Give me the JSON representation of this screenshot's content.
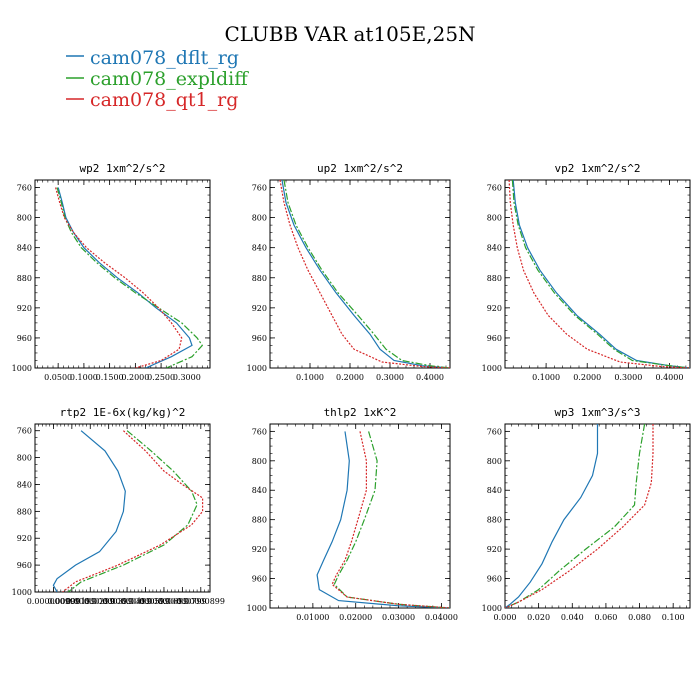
{
  "title": "CLUBB VAR at105E,25N",
  "legend": [
    {
      "label": "cam078_dflt_rg",
      "color": "#1f77b4"
    },
    {
      "label": "cam078_expldiff",
      "color": "#2ca02c"
    },
    {
      "label": "cam078_qt1_rg",
      "color": "#d62728"
    }
  ],
  "chart_data": [
    {
      "type": "line",
      "title": "wp2   1xm^2/s^2",
      "xlim": [
        0.005,
        0.345
      ],
      "ylim": [
        1000,
        750
      ],
      "xticks": [
        0.05,
        0.1,
        0.15,
        0.2,
        0.25,
        0.3
      ],
      "xticklabels": [
        "0.0500",
        "0.1000",
        "0.1500",
        "0.2000",
        "0.2500",
        "0.3000"
      ],
      "yticks": [
        760,
        800,
        840,
        880,
        920,
        960,
        1000
      ],
      "series": [
        {
          "name": "cam078_dflt_rg",
          "points": [
            [
              0.05,
              760
            ],
            [
              0.058,
              780
            ],
            [
              0.065,
              800
            ],
            [
              0.08,
              820
            ],
            [
              0.1,
              840
            ],
            [
              0.13,
              860
            ],
            [
              0.165,
              880
            ],
            [
              0.205,
              900
            ],
            [
              0.24,
              920
            ],
            [
              0.28,
              940
            ],
            [
              0.305,
              960
            ],
            [
              0.31,
              970
            ],
            [
              0.27,
              985
            ],
            [
              0.22,
              1000
            ]
          ]
        },
        {
          "name": "cam078_expldiff",
          "points": [
            [
              0.048,
              760
            ],
            [
              0.056,
              780
            ],
            [
              0.063,
              800
            ],
            [
              0.076,
              820
            ],
            [
              0.095,
              840
            ],
            [
              0.125,
              860
            ],
            [
              0.16,
              880
            ],
            [
              0.2,
              900
            ],
            [
              0.245,
              920
            ],
            [
              0.29,
              940
            ],
            [
              0.32,
              960
            ],
            [
              0.33,
              970
            ],
            [
              0.31,
              985
            ],
            [
              0.26,
              1000
            ]
          ]
        },
        {
          "name": "cam078_qt1_rg",
          "points": [
            [
              0.045,
              760
            ],
            [
              0.053,
              780
            ],
            [
              0.062,
              800
            ],
            [
              0.08,
              820
            ],
            [
              0.105,
              840
            ],
            [
              0.14,
              860
            ],
            [
              0.18,
              880
            ],
            [
              0.215,
              900
            ],
            [
              0.245,
              920
            ],
            [
              0.27,
              940
            ],
            [
              0.29,
              960
            ],
            [
              0.285,
              975
            ],
            [
              0.25,
              990
            ],
            [
              0.2,
              1000
            ]
          ]
        }
      ]
    },
    {
      "type": "line",
      "title": "up2   1xm^2/s^2",
      "xlim": [
        0.0,
        0.45
      ],
      "ylim": [
        1000,
        750
      ],
      "xticks": [
        0.1,
        0.2,
        0.3,
        0.4
      ],
      "xticklabels": [
        "0.1000",
        "0.2000",
        "0.3000",
        "0.4000"
      ],
      "yticks": [
        760,
        800,
        840,
        880,
        920,
        960,
        1000
      ],
      "series": [
        {
          "name": "cam078_dflt_rg",
          "points": [
            [
              0.03,
              750
            ],
            [
              0.04,
              780
            ],
            [
              0.06,
              810
            ],
            [
              0.09,
              840
            ],
            [
              0.125,
              870
            ],
            [
              0.165,
              900
            ],
            [
              0.21,
              930
            ],
            [
              0.25,
              955
            ],
            [
              0.275,
              975
            ],
            [
              0.31,
              990
            ],
            [
              0.38,
              997
            ],
            [
              0.45,
              1000
            ]
          ]
        },
        {
          "name": "cam078_expldiff",
          "points": [
            [
              0.035,
              750
            ],
            [
              0.045,
              780
            ],
            [
              0.065,
              810
            ],
            [
              0.095,
              840
            ],
            [
              0.13,
              870
            ],
            [
              0.17,
              900
            ],
            [
              0.22,
              930
            ],
            [
              0.26,
              955
            ],
            [
              0.29,
              975
            ],
            [
              0.33,
              990
            ],
            [
              0.4,
              997
            ],
            [
              0.45,
              1000
            ]
          ]
        },
        {
          "name": "cam078_qt1_rg",
          "points": [
            [
              0.025,
              750
            ],
            [
              0.035,
              780
            ],
            [
              0.05,
              810
            ],
            [
              0.07,
              840
            ],
            [
              0.095,
              870
            ],
            [
              0.125,
              900
            ],
            [
              0.155,
              930
            ],
            [
              0.18,
              955
            ],
            [
              0.21,
              975
            ],
            [
              0.28,
              992
            ],
            [
              0.38,
              998
            ],
            [
              0.45,
              1000
            ]
          ]
        }
      ]
    },
    {
      "type": "line",
      "title": "vp2   1xm^2/s^2",
      "xlim": [
        0.0,
        0.45
      ],
      "ylim": [
        1000,
        750
      ],
      "xticks": [
        0.1,
        0.2,
        0.3,
        0.4
      ],
      "xticklabels": [
        "0.1000",
        "0.2000",
        "0.3000",
        "0.4000"
      ],
      "yticks": [
        760,
        800,
        840,
        880,
        920,
        960,
        1000
      ],
      "series": [
        {
          "name": "cam078_dflt_rg",
          "points": [
            [
              0.02,
              750
            ],
            [
              0.025,
              780
            ],
            [
              0.035,
              810
            ],
            [
              0.055,
              840
            ],
            [
              0.085,
              870
            ],
            [
              0.125,
              900
            ],
            [
              0.175,
              930
            ],
            [
              0.23,
              955
            ],
            [
              0.27,
              975
            ],
            [
              0.32,
              990
            ],
            [
              0.4,
              997
            ],
            [
              0.45,
              1000
            ]
          ]
        },
        {
          "name": "cam078_expldiff",
          "points": [
            [
              0.018,
              750
            ],
            [
              0.022,
              780
            ],
            [
              0.032,
              810
            ],
            [
              0.05,
              840
            ],
            [
              0.08,
              870
            ],
            [
              0.12,
              900
            ],
            [
              0.17,
              930
            ],
            [
              0.225,
              955
            ],
            [
              0.265,
              975
            ],
            [
              0.31,
              990
            ],
            [
              0.4,
              997
            ],
            [
              0.45,
              1000
            ]
          ]
        },
        {
          "name": "cam078_qt1_rg",
          "points": [
            [
              0.01,
              750
            ],
            [
              0.013,
              780
            ],
            [
              0.02,
              810
            ],
            [
              0.03,
              840
            ],
            [
              0.045,
              870
            ],
            [
              0.07,
              900
            ],
            [
              0.105,
              930
            ],
            [
              0.15,
              955
            ],
            [
              0.2,
              975
            ],
            [
              0.28,
              992
            ],
            [
              0.38,
              998
            ],
            [
              0.45,
              1000
            ]
          ]
        }
      ]
    },
    {
      "type": "line",
      "title": "rtp2   1E-6x(kg/kg)^2",
      "xlim": [
        0.0,
        9.5e-06
      ],
      "ylim": [
        1000,
        750
      ],
      "xticks": [
        1e-06,
        2e-06,
        3e-06,
        4e-06,
        5e-06,
        6e-06,
        7e-06,
        8e-06,
        9e-06
      ],
      "xticklabels": [
        "0.000000999",
        "0.00000199",
        "0.00000299",
        "0.00000399",
        "0.00000499",
        "0.00000599",
        "0.00000699",
        "0.00000799",
        "0.00000899"
      ],
      "yticks": [
        760,
        800,
        840,
        880,
        920,
        960,
        1000
      ],
      "series": [
        {
          "name": "cam078_dflt_rg",
          "points": [
            [
              2.5e-06,
              760
            ],
            [
              3.8e-06,
              790
            ],
            [
              4.5e-06,
              820
            ],
            [
              4.9e-06,
              850
            ],
            [
              4.8e-06,
              880
            ],
            [
              4.4e-06,
              910
            ],
            [
              3.5e-06,
              940
            ],
            [
              2.2e-06,
              960
            ],
            [
              1.2e-06,
              980
            ],
            [
              1e-06,
              990
            ],
            [
              1.2e-06,
              1000
            ]
          ]
        },
        {
          "name": "cam078_expldiff",
          "points": [
            [
              5e-06,
              760
            ],
            [
              6.3e-06,
              790
            ],
            [
              7.5e-06,
              820
            ],
            [
              8.5e-06,
              850
            ],
            [
              8.8e-06,
              870
            ],
            [
              8.3e-06,
              900
            ],
            [
              7e-06,
              930
            ],
            [
              4.8e-06,
              960
            ],
            [
              2.5e-06,
              985
            ],
            [
              1.8e-06,
              1000
            ]
          ]
        },
        {
          "name": "cam078_qt1_rg",
          "points": [
            [
              4.8e-06,
              760
            ],
            [
              6e-06,
              790
            ],
            [
              7e-06,
              820
            ],
            [
              8e-06,
              840
            ],
            [
              9.1e-06,
              860
            ],
            [
              9.1e-06,
              880
            ],
            [
              8.5e-06,
              900
            ],
            [
              6.8e-06,
              930
            ],
            [
              4.5e-06,
              960
            ],
            [
              2.2e-06,
              985
            ],
            [
              1.5e-06,
              1000
            ]
          ]
        }
      ]
    },
    {
      "type": "line",
      "title": "thlp2   1xK^2",
      "xlim": [
        0.0,
        0.042
      ],
      "ylim": [
        1000,
        750
      ],
      "xticks": [
        0.01,
        0.02,
        0.03,
        0.04
      ],
      "xticklabels": [
        "0.01000",
        "0.02000",
        "0.03000",
        "0.04000"
      ],
      "yticks": [
        760,
        800,
        840,
        880,
        920,
        960,
        1000
      ],
      "series": [
        {
          "name": "cam078_dflt_rg",
          "points": [
            [
              0.0175,
              760
            ],
            [
              0.0185,
              800
            ],
            [
              0.018,
              840
            ],
            [
              0.0165,
              880
            ],
            [
              0.0145,
              910
            ],
            [
              0.0125,
              935
            ],
            [
              0.011,
              955
            ],
            [
              0.0115,
              975
            ],
            [
              0.016,
              990
            ],
            [
              0.03,
              997
            ],
            [
              0.042,
              1000
            ]
          ]
        },
        {
          "name": "cam078_expldiff",
          "points": [
            [
              0.023,
              760
            ],
            [
              0.025,
              800
            ],
            [
              0.0245,
              840
            ],
            [
              0.022,
              880
            ],
            [
              0.02,
              910
            ],
            [
              0.018,
              935
            ],
            [
              0.016,
              955
            ],
            [
              0.015,
              968
            ],
            [
              0.018,
              985
            ],
            [
              0.03,
              995
            ],
            [
              0.042,
              1000
            ]
          ]
        },
        {
          "name": "cam078_qt1_rg",
          "points": [
            [
              0.021,
              760
            ],
            [
              0.0225,
              800
            ],
            [
              0.0225,
              840
            ],
            [
              0.0205,
              880
            ],
            [
              0.019,
              910
            ],
            [
              0.0175,
              935
            ],
            [
              0.0155,
              955
            ],
            [
              0.0145,
              968
            ],
            [
              0.018,
              985
            ],
            [
              0.03,
              995
            ],
            [
              0.042,
              1000
            ]
          ]
        }
      ]
    },
    {
      "type": "line",
      "title": "wp3   1xm^3/s^3",
      "xlim": [
        0.0,
        0.11
      ],
      "ylim": [
        1000,
        750
      ],
      "xticks": [
        0.0,
        0.02,
        0.04,
        0.06,
        0.08,
        0.1
      ],
      "xticklabels": [
        "0.000",
        "0.020",
        "0.040",
        "0.060",
        "0.080",
        "0.100"
      ],
      "yticks": [
        760,
        800,
        840,
        880,
        920,
        960,
        1000
      ],
      "series": [
        {
          "name": "cam078_dflt_rg",
          "points": [
            [
              0.055,
              750
            ],
            [
              0.055,
              790
            ],
            [
              0.052,
              820
            ],
            [
              0.045,
              850
            ],
            [
              0.035,
              880
            ],
            [
              0.028,
              910
            ],
            [
              0.022,
              940
            ],
            [
              0.015,
              965
            ],
            [
              0.008,
              985
            ],
            [
              0.003,
              995
            ],
            [
              0.0,
              1000
            ]
          ]
        },
        {
          "name": "cam078_expldiff",
          "points": [
            [
              0.083,
              750
            ],
            [
              0.08,
              790
            ],
            [
              0.078,
              830
            ],
            [
              0.077,
              860
            ],
            [
              0.065,
              890
            ],
            [
              0.048,
              920
            ],
            [
              0.032,
              950
            ],
            [
              0.02,
              975
            ],
            [
              0.008,
              992
            ],
            [
              0.0,
              1000
            ]
          ]
        },
        {
          "name": "cam078_qt1_rg",
          "points": [
            [
              0.088,
              750
            ],
            [
              0.088,
              790
            ],
            [
              0.087,
              830
            ],
            [
              0.083,
              860
            ],
            [
              0.07,
              890
            ],
            [
              0.055,
              920
            ],
            [
              0.038,
              950
            ],
            [
              0.022,
              975
            ],
            [
              0.008,
              992
            ],
            [
              0.0,
              1000
            ]
          ]
        }
      ]
    }
  ]
}
